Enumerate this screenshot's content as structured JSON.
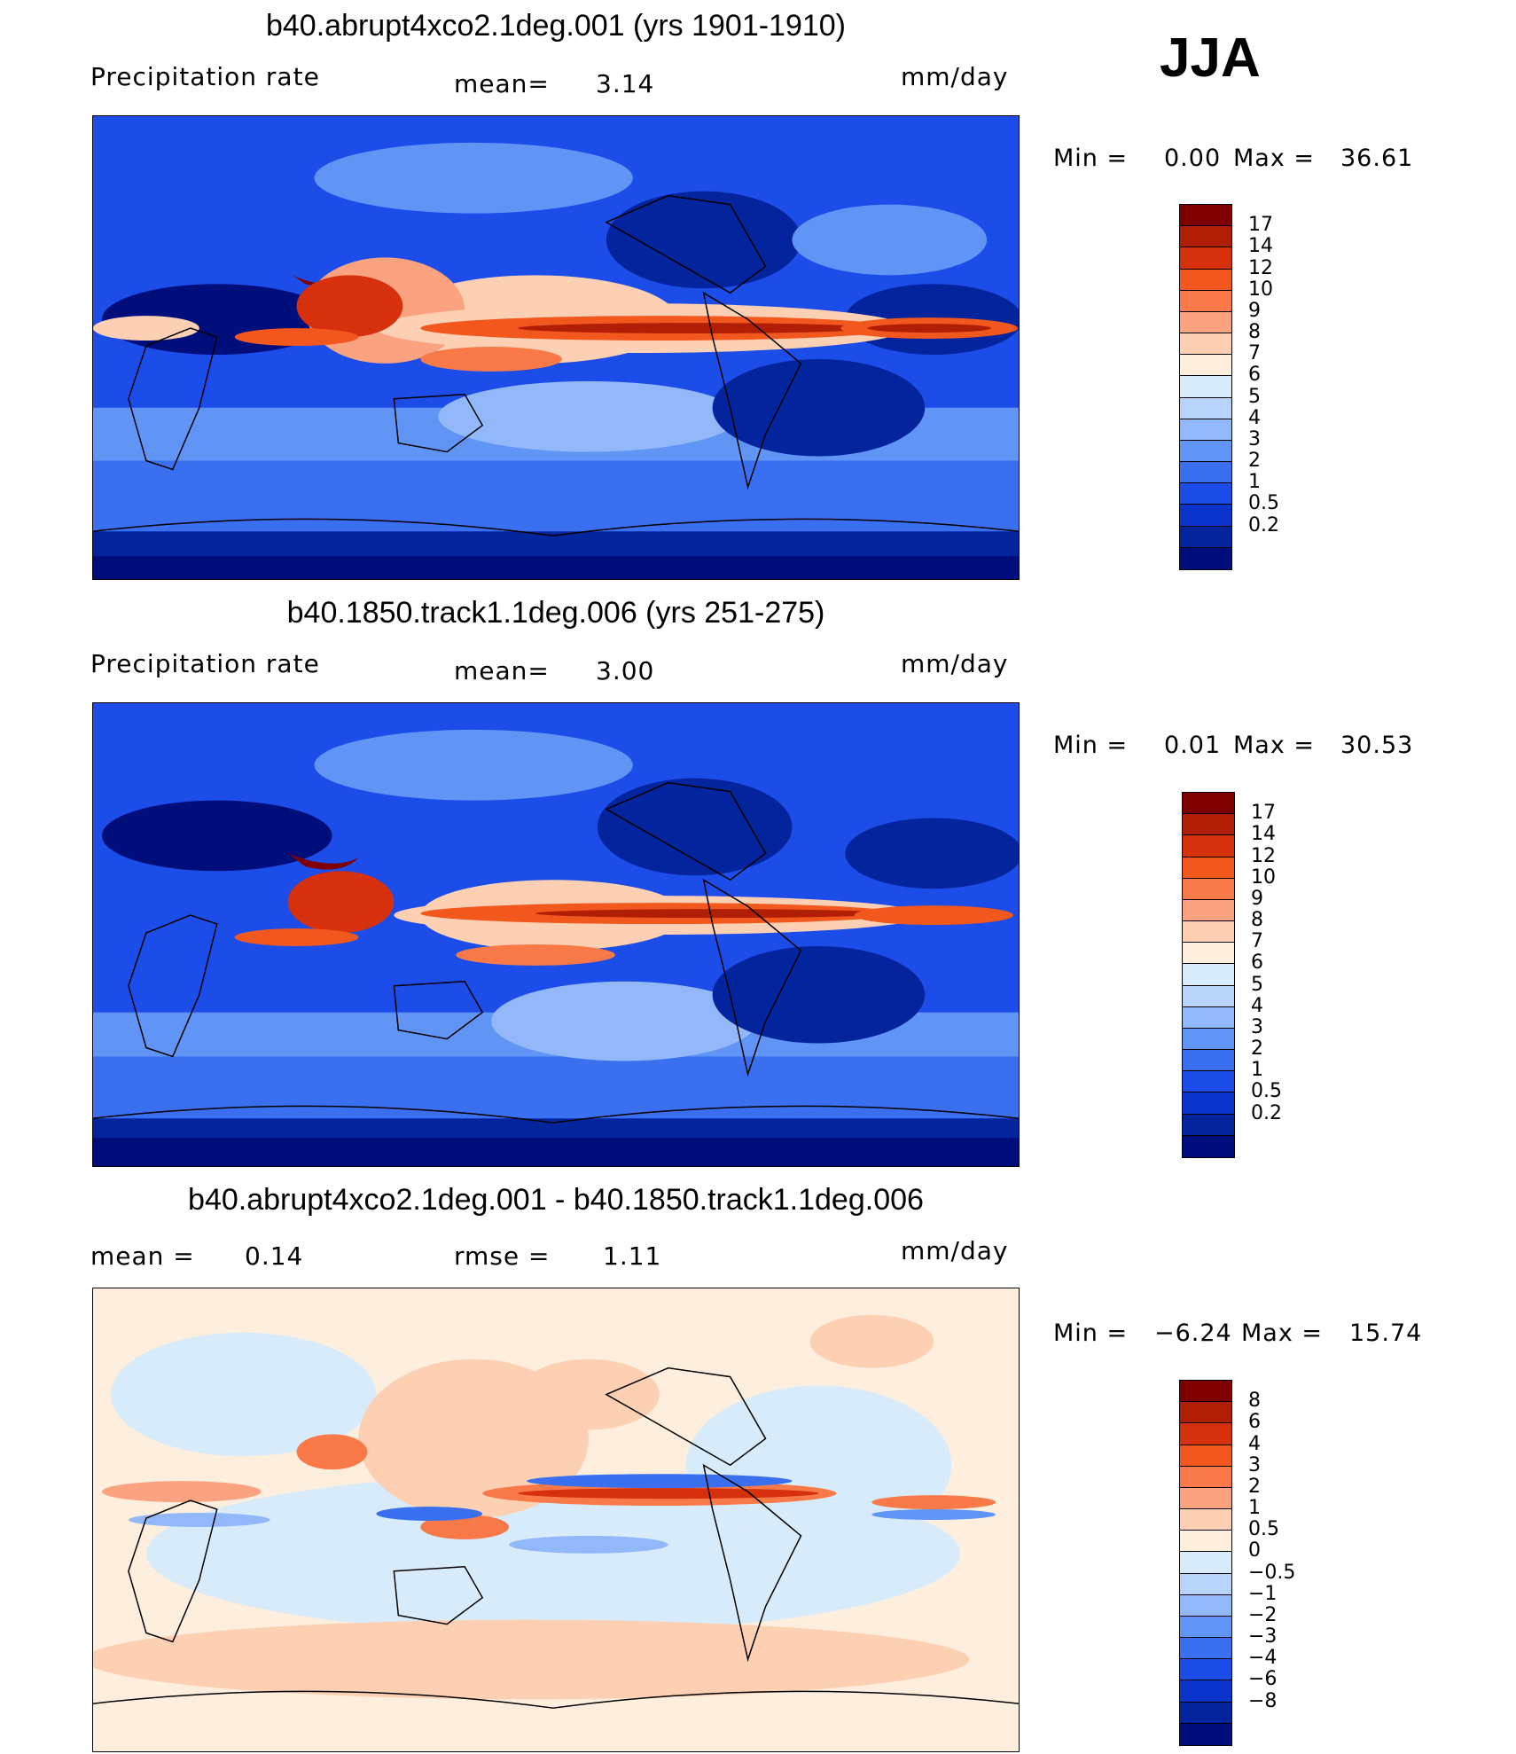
{
  "season_label": "JJA",
  "units": "mm/day",
  "panels": [
    {
      "title": "b40.abrupt4xco2.1deg.001 (yrs 1901-1910)",
      "left_label": "Precipitation  rate",
      "center_label": "mean=",
      "center_value": "3.14",
      "units": "mm/day",
      "min_label": "Min  =",
      "min_value": "0.00",
      "max_label": "Max  =",
      "max_value": "36.61",
      "map_type": "absolute",
      "colorbar": {
        "colors": [
          "#7f0000",
          "#b01f05",
          "#d7300d",
          "#f2581e",
          "#f97a48",
          "#fba381",
          "#fdd0b4",
          "#fdeedd",
          "#d8ebfb",
          "#b9d4fb",
          "#93b8f9",
          "#6095f5",
          "#3a6ff0",
          "#1c4de8",
          "#0a34cc",
          "#03249d",
          "#000e7c"
        ],
        "labels": [
          "17",
          "14",
          "12",
          "10",
          "9",
          "8",
          "7",
          "6",
          "5",
          "4",
          "3",
          "2",
          "1",
          "0.5",
          "0.2"
        ]
      }
    },
    {
      "title": "b40.1850.track1.1deg.006 (yrs 251-275)",
      "left_label": "Precipitation  rate",
      "center_label": "mean=",
      "center_value": "3.00",
      "units": "mm/day",
      "min_label": "Min  =",
      "min_value": "0.01",
      "max_label": "Max  =",
      "max_value": "30.53",
      "map_type": "absolute",
      "colorbar": {
        "colors": [
          "#7f0000",
          "#b01f05",
          "#d7300d",
          "#f2581e",
          "#f97a48",
          "#fba381",
          "#fdd0b4",
          "#fdeedd",
          "#d8ebfb",
          "#b9d4fb",
          "#93b8f9",
          "#6095f5",
          "#3a6ff0",
          "#1c4de8",
          "#0a34cc",
          "#03249d",
          "#000e7c"
        ],
        "labels": [
          "17",
          "14",
          "12",
          "10",
          "9",
          "8",
          "7",
          "6",
          "5",
          "4",
          "3",
          "2",
          "1",
          "0.5",
          "0.2"
        ]
      }
    },
    {
      "title": "b40.abrupt4xco2.1deg.001 - b40.1850.track1.1deg.006",
      "left_label": "mean  =",
      "left_value": "0.14",
      "center_label": "rmse  =",
      "center_value": "1.11",
      "units": "mm/day",
      "min_label": "Min  =",
      "min_value": "−6.24",
      "max_label": "Max  =",
      "max_value": "15.74",
      "map_type": "difference",
      "colorbar": {
        "colors": [
          "#7f0000",
          "#b01f05",
          "#d7300d",
          "#f2581e",
          "#f97a48",
          "#fba381",
          "#fdd0b4",
          "#fdeedd",
          "#d8ebfb",
          "#b9d4fb",
          "#93b8f9",
          "#6095f5",
          "#3a6ff0",
          "#1c4de8",
          "#0a34cc",
          "#03249d",
          "#000e7c"
        ],
        "labels": [
          "8",
          "6",
          "4",
          "3",
          "2",
          "1",
          "0.5",
          "0",
          "−0.5",
          "−1",
          "−2",
          "−3",
          "−4",
          "−6",
          "−8"
        ]
      }
    }
  ]
}
